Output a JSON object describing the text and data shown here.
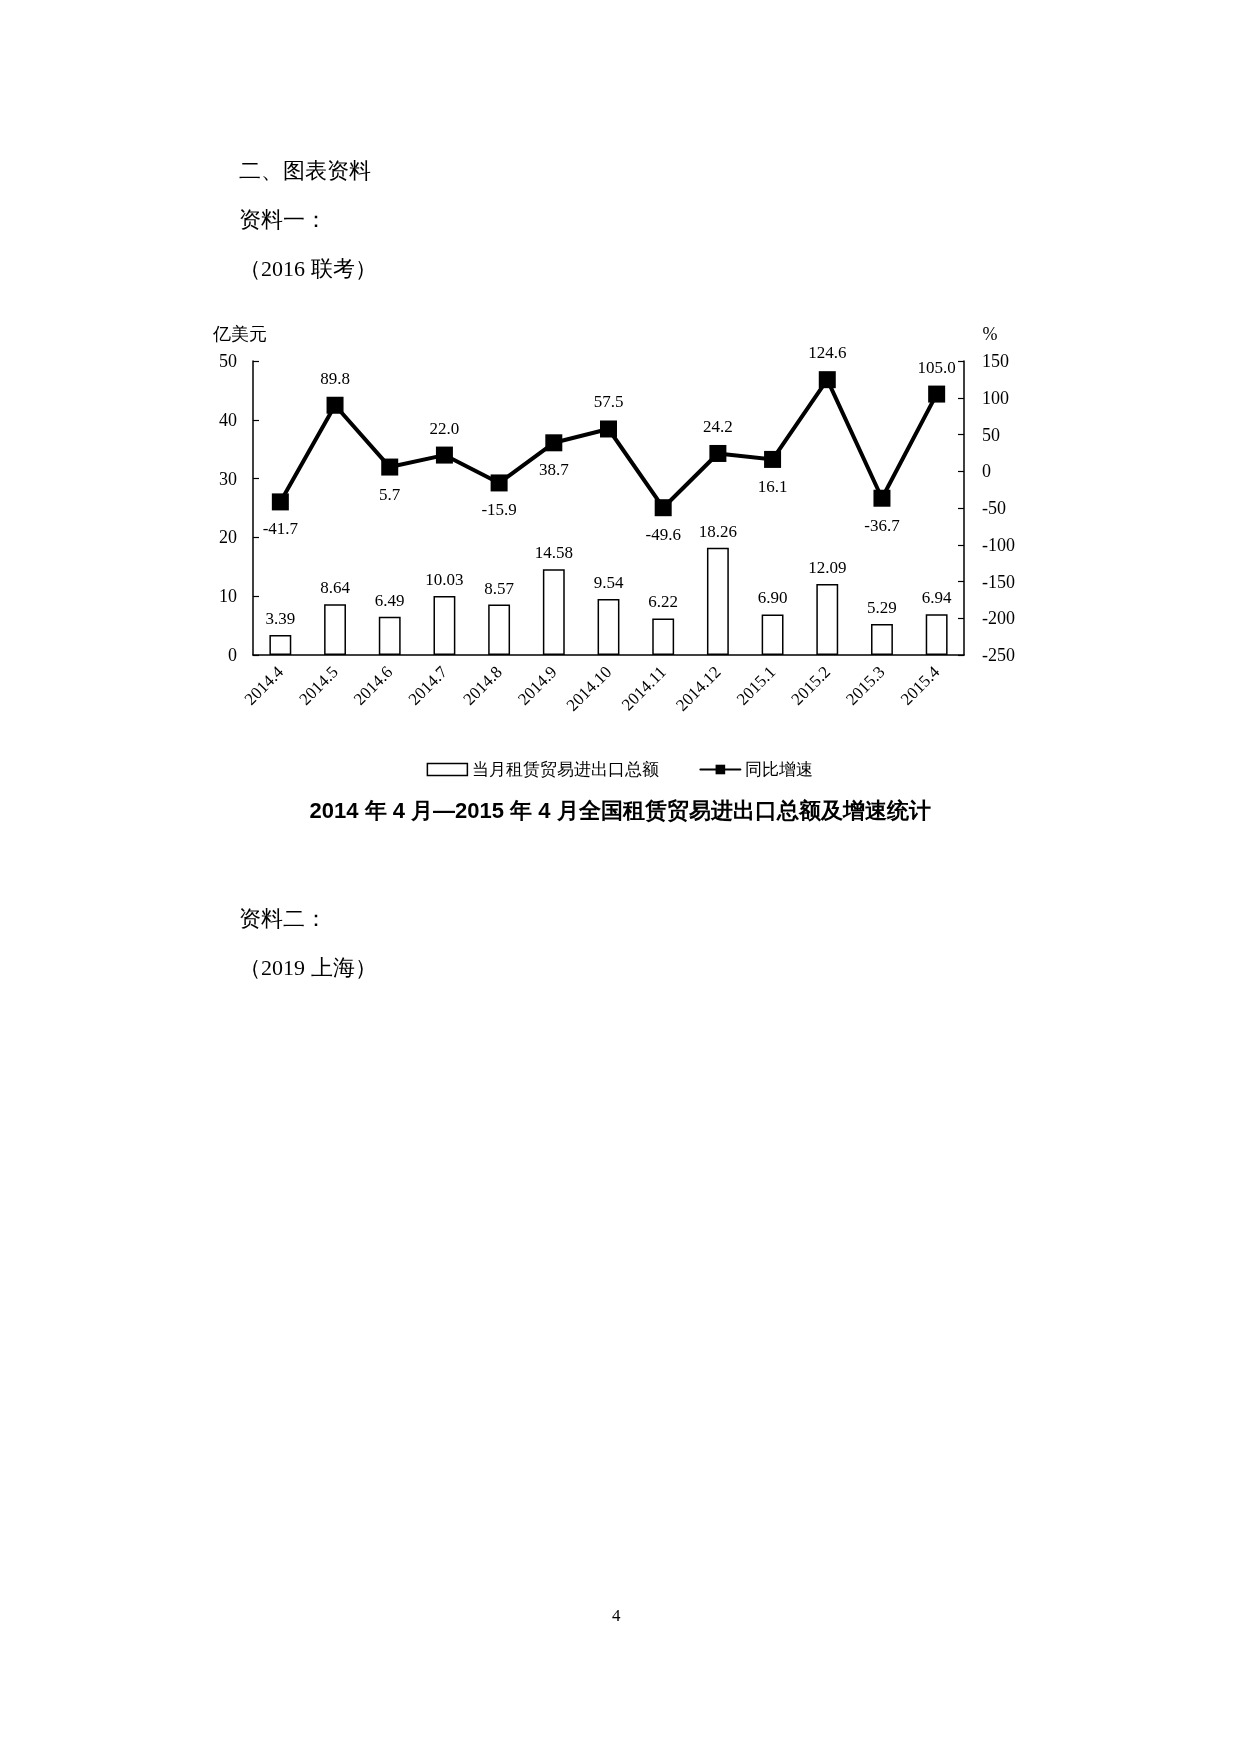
{
  "chart_data": {
    "type": "bar",
    "title": "2014 年 4 月—2015 年 4 月全国租赁贸易进出口总额及增速统计",
    "ylabel": "亿美元",
    "y2label": "%",
    "annotations": [
      "二、图表资料",
      "资料一：",
      "（2016 联考）",
      "资料二：",
      "（2019 上海）",
      "4"
    ],
    "categories": [
      "2014.4",
      "2014.5",
      "2014.6",
      "2014.7",
      "2014.8",
      "2014.9",
      "2014.10",
      "2014.11",
      "2014.12",
      "2015.1",
      "2015.2",
      "2015.3",
      "2015.4"
    ],
    "series": [
      {
        "name": "当月租赁贸易进出口总额",
        "color": "#ffffff",
        "values": [
          3.39,
          8.64,
          6.49,
          10.03,
          8.57,
          14.58,
          9.54,
          6.22,
          18.26,
          6.9,
          12.09,
          5.29,
          6.94
        ],
        "value_labels": [
          "3.39",
          "8.64",
          "6.49",
          "10.03",
          "8.57",
          "14.58",
          "9.54",
          "6.22",
          "18.26",
          "6.90",
          "12.09",
          "5.29",
          "6.94"
        ]
      },
      {
        "name": "同比增速",
        "type": "line",
        "axis": "y2",
        "color": "#000000",
        "values": [
          -41.7,
          89.8,
          5.7,
          22.0,
          -15.9,
          38.7,
          57.5,
          -49.6,
          24.2,
          16.1,
          124.6,
          -36.7,
          105.0
        ],
        "value_labels": [
          "-41.7",
          "89.8",
          "5.7",
          "22.0",
          "-15.9",
          "38.7",
          "57.5",
          "-49.6",
          "24.2",
          "16.1",
          "124.6",
          "-36.7",
          "105.0"
        ]
      }
    ],
    "ylim": [
      0,
      50
    ],
    "yticks": [
      0,
      10,
      20,
      30,
      40,
      50
    ],
    "y2lim": [
      -250,
      150
    ],
    "y2ticks": [
      -250,
      -200,
      -150,
      -100,
      -50,
      0,
      50,
      100,
      150
    ],
    "grid": false,
    "legend": "bottom",
    "marker": "square",
    "line_style": "solid"
  }
}
